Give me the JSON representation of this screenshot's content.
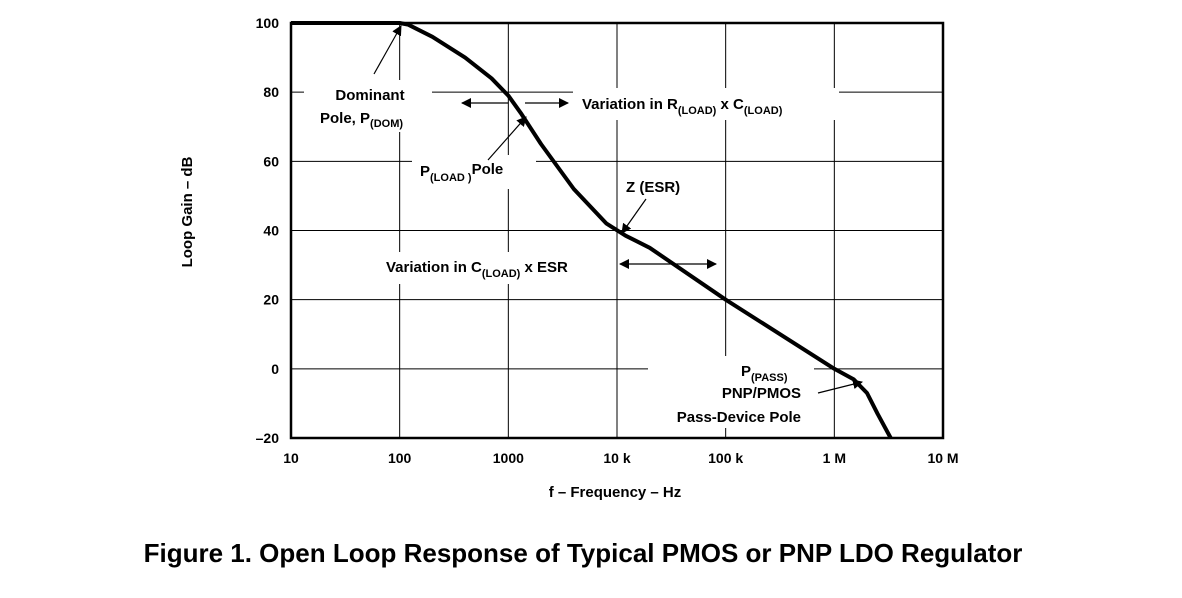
{
  "caption": "Figure 1.  Open Loop Response of Typical PMOS or PNP LDO Regulator",
  "chart_data": {
    "type": "line",
    "xlabel": "f – Frequency – Hz",
    "ylabel": "Loop Gain – dB",
    "xscale": "log",
    "xlim": [
      10,
      10000000
    ],
    "ylim": [
      -20,
      100
    ],
    "grid": true,
    "x_tick_labels": [
      "10",
      "100",
      "1000",
      "10 k",
      "100 k",
      "1 M",
      "10 M"
    ],
    "y_tick_labels": [
      "100",
      "80",
      "60",
      "40",
      "20",
      "0",
      "–20"
    ],
    "series": [
      {
        "x": [
          10,
          100,
          120,
          200,
          400,
          700,
          1000,
          1300,
          2000,
          4000,
          8000,
          12000,
          20000,
          100000,
          1000000,
          1500000,
          2000000,
          2500000,
          3300000
        ],
        "y": [
          100,
          100,
          99.5,
          96,
          90,
          84,
          79,
          74,
          65,
          52,
          42,
          38.5,
          35,
          20,
          0,
          -3,
          -7,
          -13,
          -20
        ]
      }
    ],
    "annotations": {
      "dominant_pole": [
        "Dominant",
        "Pole, P",
        "(DOM)"
      ],
      "load_pole": [
        "P",
        "(LOAD )",
        "Pole"
      ],
      "variation_rc": [
        "Variation in R",
        "(LOAD)",
        " x C",
        "(LOAD)"
      ],
      "zesr": "Z (ESR)",
      "variation_cesr": [
        "Variation in C",
        "(LOAD)",
        " x ESR"
      ],
      "pass_pole": [
        "P",
        "(PASS)",
        "PNP/PMOS",
        "Pass-Device Pole"
      ]
    }
  }
}
